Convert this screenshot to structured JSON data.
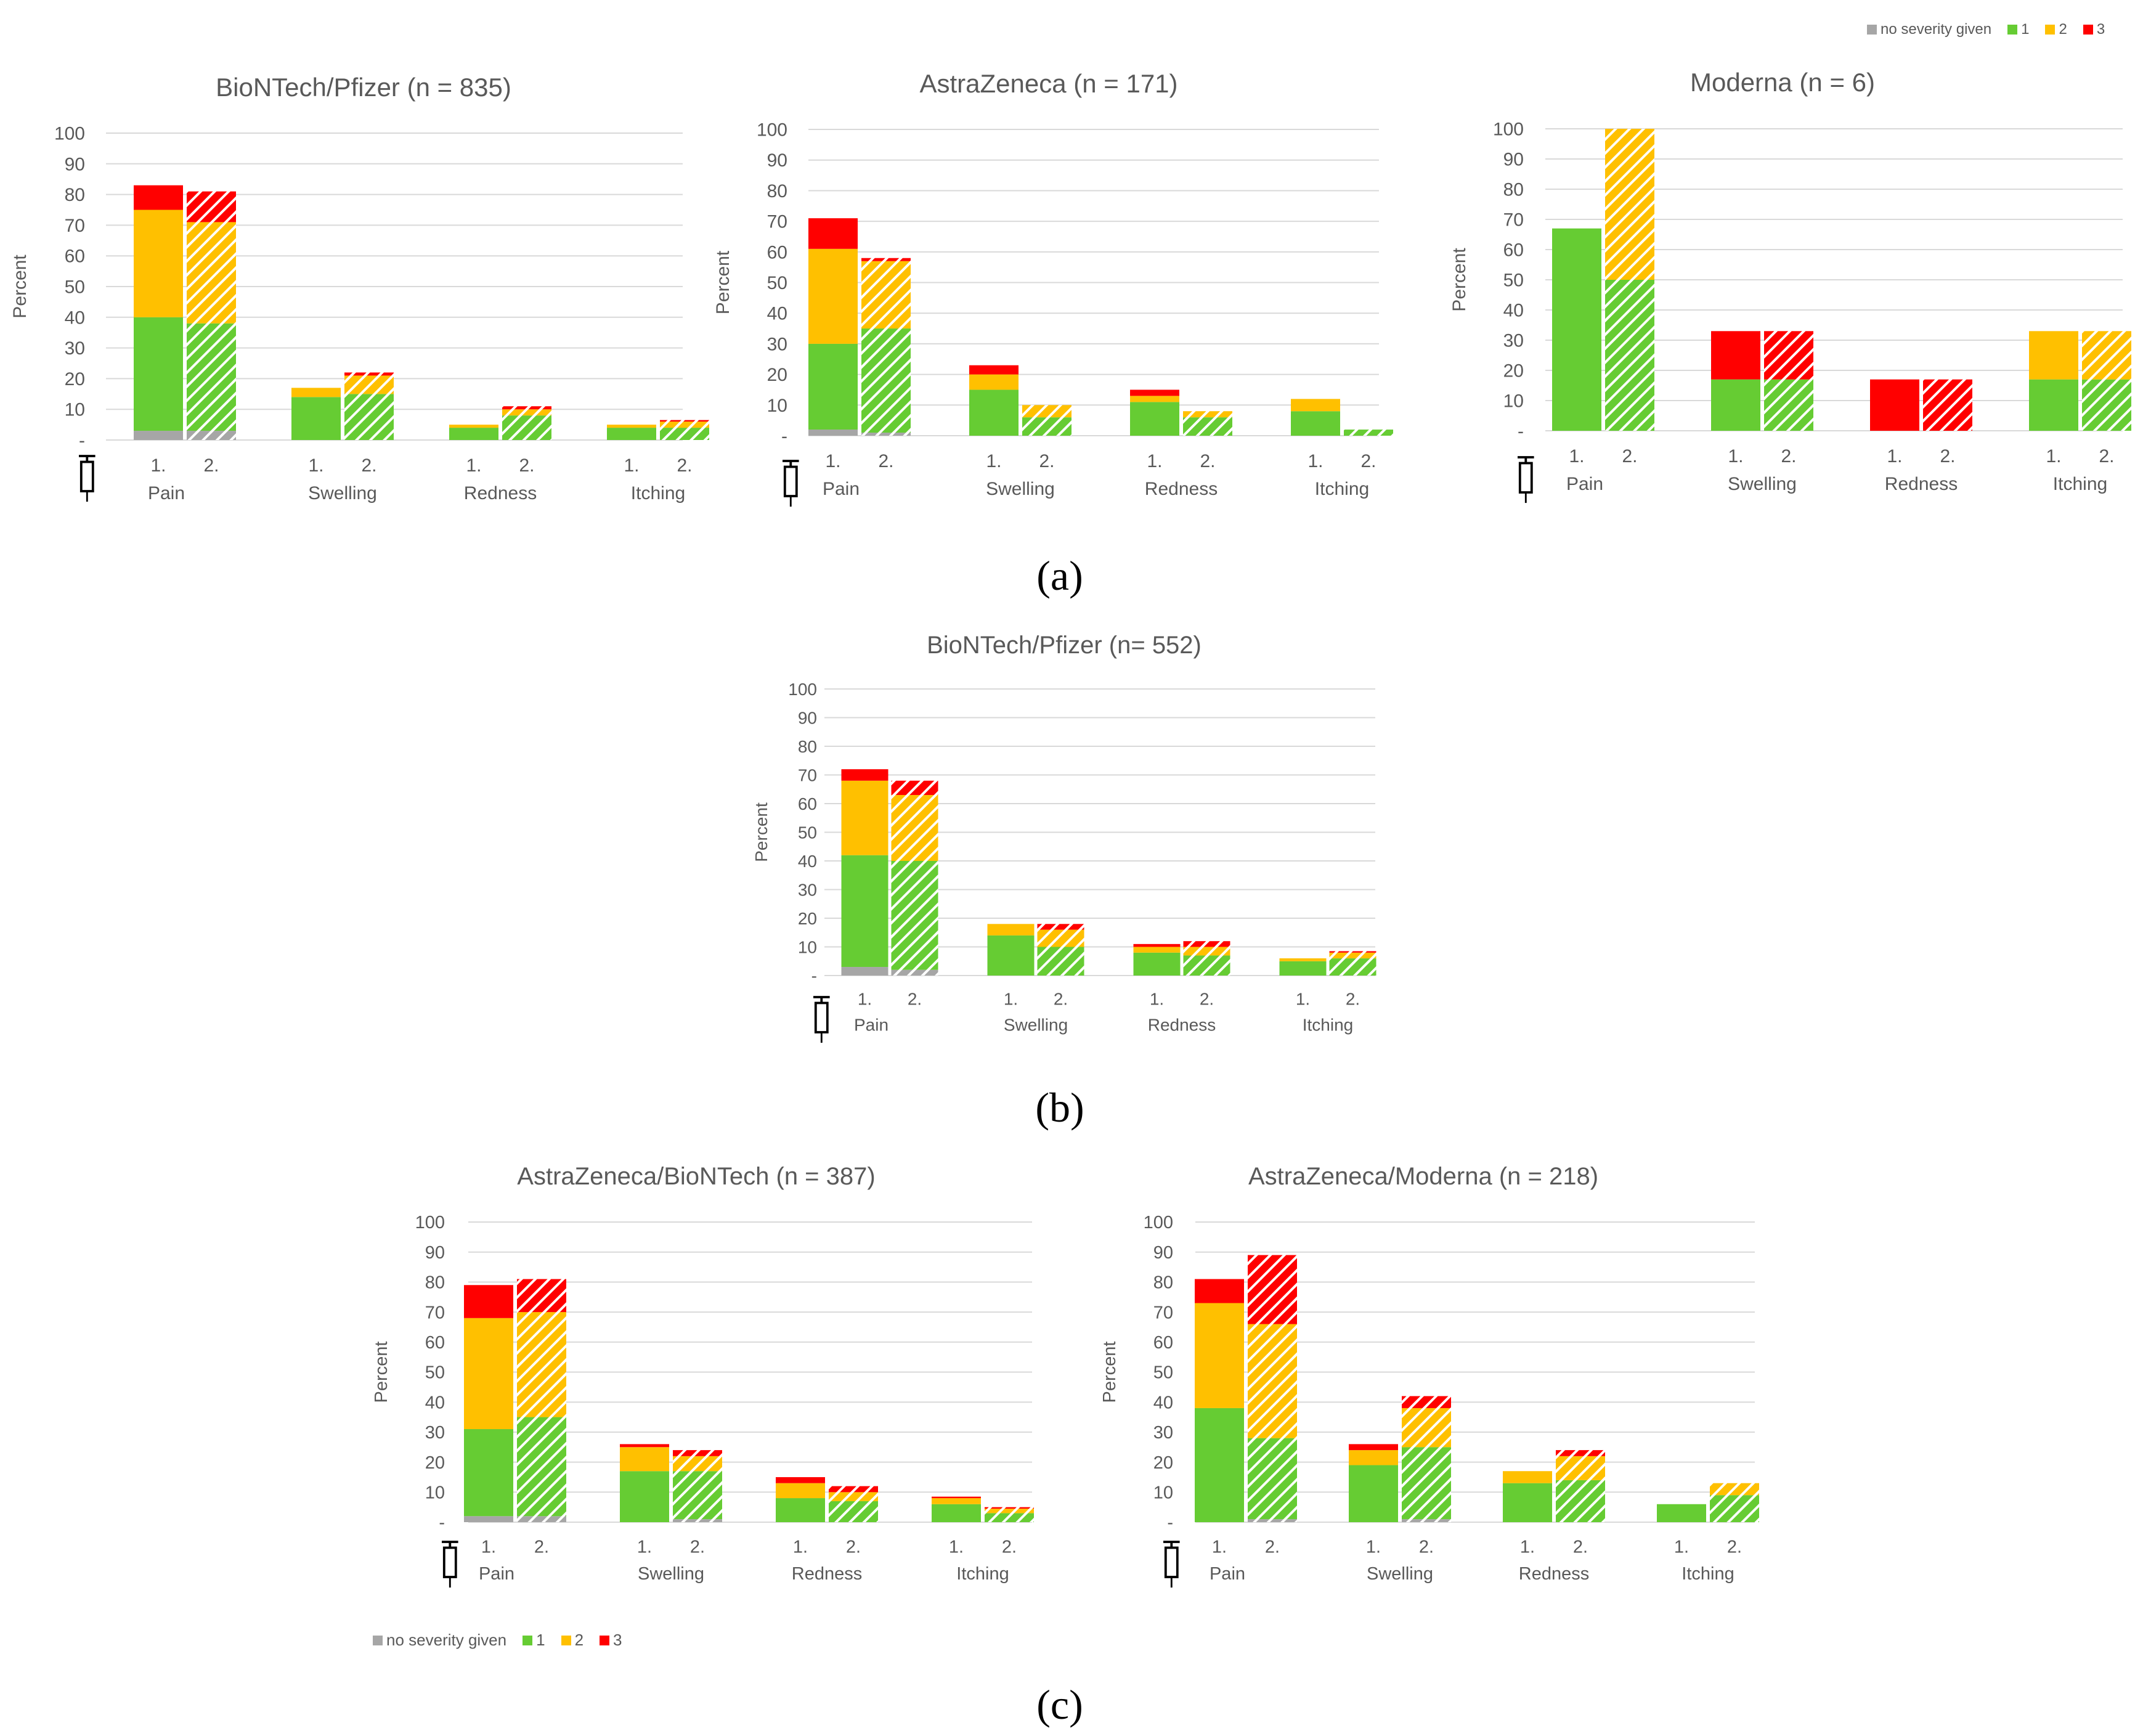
{
  "colors": {
    "no_severity": "#a6a6a6",
    "sev1": "#66cc33",
    "sev2": "#ffc000",
    "sev3": "#ff0000",
    "grid": "#d9d9d9",
    "axis_text": "#595959",
    "title_text": "#595959"
  },
  "legend": {
    "items": [
      {
        "label": "no severity given",
        "color": "#a6a6a6"
      },
      {
        "label": "1",
        "color": "#66cc33"
      },
      {
        "label": "2",
        "color": "#ffc000"
      },
      {
        "label": "3",
        "color": "#ff0000"
      }
    ]
  },
  "panel_labels": {
    "a": "(a)",
    "b": "(b)",
    "c": "(c)"
  },
  "icons": {
    "dose_icon": "syringe-icon"
  },
  "chart_data": [
    {
      "id": "a1",
      "type": "bar",
      "stacked": true,
      "title": "BioNTech/Pfizer (n = 835)",
      "ylabel": "Percent",
      "ylim": [
        0,
        100
      ],
      "yticks": [
        "-",
        "10",
        "20",
        "30",
        "40",
        "50",
        "60",
        "70",
        "80",
        "90",
        "100"
      ],
      "categories": [
        "Pain",
        "Swelling",
        "Redness",
        "Itching"
      ],
      "doses": [
        "1.",
        "2."
      ],
      "series": [
        {
          "name": "no severity given",
          "values": [
            [
              3,
              3
            ],
            [
              0,
              0
            ],
            [
              0,
              0
            ],
            [
              0,
              0
            ]
          ]
        },
        {
          "name": "1",
          "values": [
            [
              37,
              35
            ],
            [
              14,
              15
            ],
            [
              4,
              8
            ],
            [
              4,
              4
            ]
          ]
        },
        {
          "name": "2",
          "values": [
            [
              35,
              33
            ],
            [
              3,
              6
            ],
            [
              1,
              2
            ],
            [
              1,
              2
            ]
          ]
        },
        {
          "name": "3",
          "values": [
            [
              8,
              10
            ],
            [
              0,
              1
            ],
            [
              0,
              1
            ],
            [
              0,
              0.5
            ]
          ]
        }
      ],
      "grid": true,
      "legend": "top-right"
    },
    {
      "id": "a2",
      "type": "bar",
      "stacked": true,
      "title": "AstraZeneca (n = 171)",
      "ylabel": "Percent",
      "ylim": [
        0,
        100
      ],
      "yticks": [
        "-",
        "10",
        "20",
        "30",
        "40",
        "50",
        "60",
        "70",
        "80",
        "90",
        "100"
      ],
      "categories": [
        "Pain",
        "Swelling",
        "Redness",
        "Itching"
      ],
      "doses": [
        "1.",
        "2."
      ],
      "series": [
        {
          "name": "no severity given",
          "values": [
            [
              2,
              1
            ],
            [
              0,
              0
            ],
            [
              0,
              0
            ],
            [
              0,
              0
            ]
          ]
        },
        {
          "name": "1",
          "values": [
            [
              28,
              34
            ],
            [
              15,
              6
            ],
            [
              11,
              6
            ],
            [
              8,
              2
            ]
          ]
        },
        {
          "name": "2",
          "values": [
            [
              31,
              22
            ],
            [
              5,
              4
            ],
            [
              2,
              2
            ],
            [
              4,
              0
            ]
          ]
        },
        {
          "name": "3",
          "values": [
            [
              10,
              1
            ],
            [
              3,
              0
            ],
            [
              2,
              0
            ],
            [
              0,
              0
            ]
          ]
        }
      ],
      "grid": true
    },
    {
      "id": "a3",
      "type": "bar",
      "stacked": true,
      "title": "Moderna (n = 6)",
      "ylabel": "Percent",
      "ylim": [
        0,
        100
      ],
      "yticks": [
        "-",
        "10",
        "20",
        "30",
        "40",
        "50",
        "60",
        "70",
        "80",
        "90",
        "100"
      ],
      "categories": [
        "Pain",
        "Swelling",
        "Redness",
        "Itching"
      ],
      "doses": [
        "1.",
        "2."
      ],
      "series": [
        {
          "name": "no severity given",
          "values": [
            [
              0,
              0
            ],
            [
              0,
              0
            ],
            [
              0,
              0
            ],
            [
              0,
              0
            ]
          ]
        },
        {
          "name": "1",
          "values": [
            [
              67,
              50
            ],
            [
              17,
              17
            ],
            [
              0,
              0
            ],
            [
              17,
              17
            ]
          ]
        },
        {
          "name": "2",
          "values": [
            [
              0,
              50
            ],
            [
              0,
              0
            ],
            [
              0,
              0
            ],
            [
              16,
              16
            ]
          ]
        },
        {
          "name": "3",
          "values": [
            [
              0,
              0
            ],
            [
              16,
              16
            ],
            [
              17,
              17
            ],
            [
              0,
              0
            ]
          ]
        }
      ],
      "grid": true
    },
    {
      "id": "b1",
      "type": "bar",
      "stacked": true,
      "title": "BioNTech/Pfizer (n= 552)",
      "ylabel": "Percent",
      "ylim": [
        0,
        100
      ],
      "yticks": [
        "-",
        "10",
        "20",
        "30",
        "40",
        "50",
        "60",
        "70",
        "80",
        "90",
        "100"
      ],
      "categories": [
        "Pain",
        "Swelling",
        "Redness",
        "Itching"
      ],
      "doses": [
        "1.",
        "2."
      ],
      "series": [
        {
          "name": "no severity given",
          "values": [
            [
              3,
              2
            ],
            [
              0,
              0
            ],
            [
              0,
              0
            ],
            [
              0,
              0
            ]
          ]
        },
        {
          "name": "1",
          "values": [
            [
              39,
              38
            ],
            [
              14,
              10
            ],
            [
              8,
              7
            ],
            [
              5,
              6
            ]
          ]
        },
        {
          "name": "2",
          "values": [
            [
              26,
              23
            ],
            [
              4,
              6
            ],
            [
              2,
              3
            ],
            [
              1,
              2
            ]
          ]
        },
        {
          "name": "3",
          "values": [
            [
              4,
              5
            ],
            [
              0,
              2
            ],
            [
              1,
              2
            ],
            [
              0,
              0.5
            ]
          ]
        }
      ],
      "grid": true
    },
    {
      "id": "c1",
      "type": "bar",
      "stacked": true,
      "title": "AstraZeneca/BioNTech (n = 387)",
      "ylabel": "Percent",
      "ylim": [
        0,
        100
      ],
      "yticks": [
        "-",
        "10",
        "20",
        "30",
        "40",
        "50",
        "60",
        "70",
        "80",
        "90",
        "100"
      ],
      "categories": [
        "Pain",
        "Swelling",
        "Redness",
        "Itching"
      ],
      "doses": [
        "1.",
        "2."
      ],
      "series": [
        {
          "name": "no severity given",
          "values": [
            [
              2,
              2
            ],
            [
              0,
              1
            ],
            [
              0,
              0
            ],
            [
              0,
              0
            ]
          ]
        },
        {
          "name": "1",
          "values": [
            [
              29,
              33
            ],
            [
              17,
              16
            ],
            [
              8,
              7
            ],
            [
              6,
              3
            ]
          ]
        },
        {
          "name": "2",
          "values": [
            [
              37,
              35
            ],
            [
              8,
              5
            ],
            [
              5,
              3
            ],
            [
              2,
              1.5
            ]
          ]
        },
        {
          "name": "3",
          "values": [
            [
              11,
              11
            ],
            [
              1,
              2
            ],
            [
              2,
              2
            ],
            [
              0.5,
              0.5
            ]
          ]
        }
      ],
      "grid": true,
      "legend": "bottom-left"
    },
    {
      "id": "c2",
      "type": "bar",
      "stacked": true,
      "title": "AstraZeneca/Moderna (n = 218)",
      "ylabel": "Percent",
      "ylim": [
        0,
        100
      ],
      "yticks": [
        "-",
        "10",
        "20",
        "30",
        "40",
        "50",
        "60",
        "70",
        "80",
        "90",
        "100"
      ],
      "categories": [
        "Pain",
        "Swelling",
        "Redness",
        "Itching"
      ],
      "doses": [
        "1.",
        "2."
      ],
      "series": [
        {
          "name": "no severity given",
          "values": [
            [
              0,
              1
            ],
            [
              0,
              1
            ],
            [
              0,
              0
            ],
            [
              0,
              0
            ]
          ]
        },
        {
          "name": "1",
          "values": [
            [
              38,
              27
            ],
            [
              19,
              24
            ],
            [
              13,
              14
            ],
            [
              6,
              9
            ]
          ]
        },
        {
          "name": "2",
          "values": [
            [
              35,
              38
            ],
            [
              5,
              13
            ],
            [
              4,
              8
            ],
            [
              0,
              4
            ]
          ]
        },
        {
          "name": "3",
          "values": [
            [
              8,
              23
            ],
            [
              2,
              4
            ],
            [
              0,
              2
            ],
            [
              0,
              0
            ]
          ]
        }
      ],
      "grid": true
    }
  ]
}
